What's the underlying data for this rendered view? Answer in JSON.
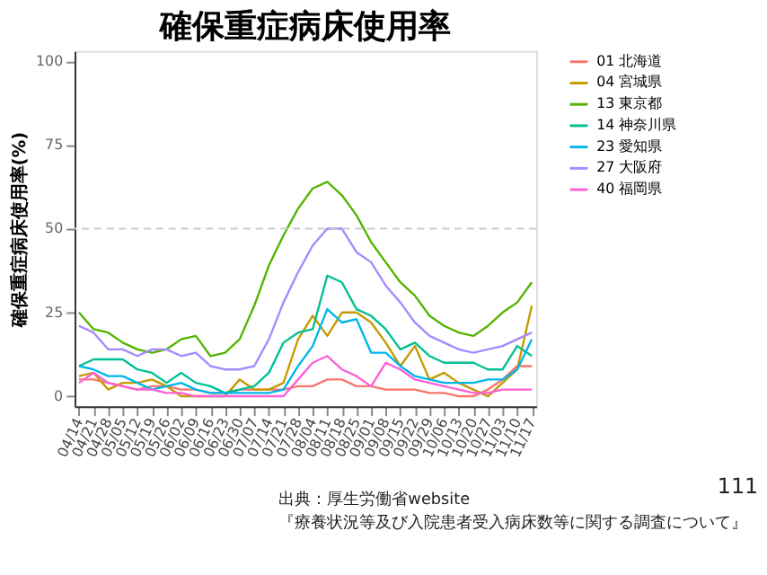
{
  "chart_data": {
    "type": "line",
    "title": "確保重症病床使用率",
    "ylabel": "確保重症病床使用率(%)",
    "categories": [
      "04/14",
      "04/21",
      "04/28",
      "05/05",
      "05/12",
      "05/19",
      "05/26",
      "06/02",
      "06/09",
      "06/16",
      "06/23",
      "06/30",
      "07/07",
      "07/14",
      "07/21",
      "07/28",
      "08/04",
      "08/11",
      "08/18",
      "08/25",
      "09/01",
      "09/08",
      "09/15",
      "09/22",
      "09/29",
      "10/06",
      "10/13",
      "10/20",
      "10/27",
      "11/03",
      "11/10",
      "11/17"
    ],
    "series": [
      {
        "name": "01 北海道",
        "color": "#f8766d",
        "values": [
          5,
          5,
          4,
          3,
          2,
          3,
          3,
          2,
          2,
          1,
          1,
          2,
          2,
          2,
          2,
          3,
          3,
          5,
          5,
          3,
          3,
          2,
          2,
          2,
          1,
          1,
          0,
          0,
          2,
          5,
          9,
          9
        ]
      },
      {
        "name": "04 宮城県",
        "color": "#c49a00",
        "values": [
          6,
          7,
          2,
          4,
          4,
          5,
          3,
          0,
          0,
          0,
          0,
          5,
          2,
          2,
          4,
          17,
          24,
          18,
          25,
          25,
          22,
          16,
          9,
          15,
          5,
          7,
          4,
          2,
          0,
          4,
          8,
          27
        ]
      },
      {
        "name": "13 東京都",
        "color": "#53b400",
        "values": [
          25,
          20,
          19,
          16,
          14,
          13,
          14,
          17,
          18,
          12,
          13,
          17,
          27,
          39,
          48,
          56,
          62,
          64,
          60,
          54,
          46,
          40,
          34,
          30,
          24,
          21,
          19,
          18,
          21,
          25,
          28,
          34
        ]
      },
      {
        "name": "14 神奈川県",
        "color": "#00c094",
        "values": [
          9,
          11,
          11,
          11,
          8,
          7,
          4,
          7,
          4,
          3,
          1,
          2,
          3,
          7,
          16,
          19,
          20,
          36,
          34,
          26,
          24,
          20,
          14,
          16,
          12,
          10,
          10,
          10,
          8,
          8,
          15,
          12
        ]
      },
      {
        "name": "23 愛知県",
        "color": "#00b6eb",
        "values": [
          9,
          8,
          6,
          6,
          4,
          2,
          3,
          4,
          2,
          1,
          1,
          1,
          1,
          1,
          2,
          9,
          15,
          26,
          22,
          23,
          13,
          13,
          9,
          6,
          5,
          4,
          4,
          4,
          5,
          5,
          8,
          17
        ]
      },
      {
        "name": "27 大阪府",
        "color": "#a58aff",
        "values": [
          21,
          19,
          14,
          14,
          12,
          14,
          14,
          12,
          13,
          9,
          8,
          8,
          9,
          17,
          28,
          37,
          45,
          50,
          50,
          43,
          40,
          33,
          28,
          22,
          18,
          16,
          14,
          13,
          14,
          15,
          17,
          19
        ]
      },
      {
        "name": "40 福岡県",
        "color": "#fb61d7",
        "values": [
          4,
          7,
          4,
          3,
          2,
          2,
          1,
          1,
          0,
          0,
          0,
          0,
          0,
          0,
          0,
          5,
          10,
          12,
          8,
          6,
          3,
          10,
          8,
          5,
          4,
          3,
          2,
          1,
          1,
          2,
          2,
          2
        ]
      }
    ],
    "ylim": [
      -3,
      103
    ],
    "yticks": [
      0,
      25,
      50,
      75,
      100
    ],
    "grid": false,
    "legend": "right",
    "ref_lines": [
      {
        "axis": "y",
        "value": 50,
        "color": "#cccccc",
        "line_style": "dashed"
      }
    ],
    "annotations": [
      "出典：厚生労働省website",
      "『療養状況等及び入院患者受入病床数等に関する調査について』",
      "111"
    ]
  }
}
